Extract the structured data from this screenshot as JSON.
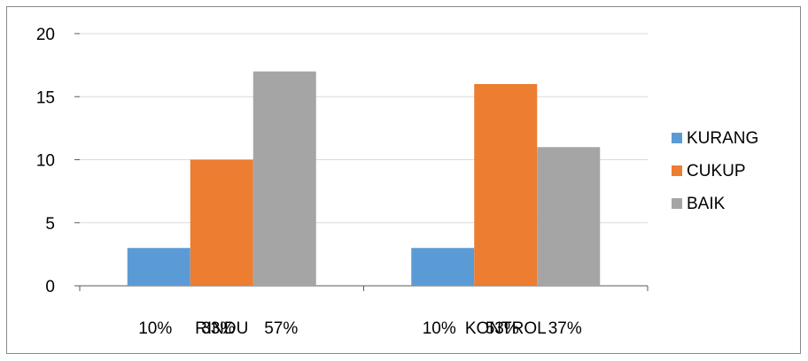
{
  "chart_data": {
    "type": "bar",
    "categories": [
      "RINDU",
      "KONTROL"
    ],
    "series": [
      {
        "name": "KURANG",
        "color": "#5B9BD5",
        "values": [
          3,
          3
        ],
        "percent_labels": [
          "10%",
          "10%"
        ]
      },
      {
        "name": "CUKUP",
        "color": "#ED7D31",
        "values": [
          10,
          16
        ],
        "percent_labels": [
          "33%",
          "53%"
        ]
      },
      {
        "name": "BAIK",
        "color": "#A5A5A5",
        "values": [
          17,
          11
        ],
        "percent_labels": [
          "57%",
          "37%"
        ]
      }
    ],
    "ylim": [
      0,
      20
    ],
    "yticks": [
      0,
      5,
      10,
      15,
      20
    ],
    "ytick_labels": [
      "0",
      "5",
      "10",
      "15",
      "20"
    ],
    "grid": true,
    "legend_position": "right"
  }
}
